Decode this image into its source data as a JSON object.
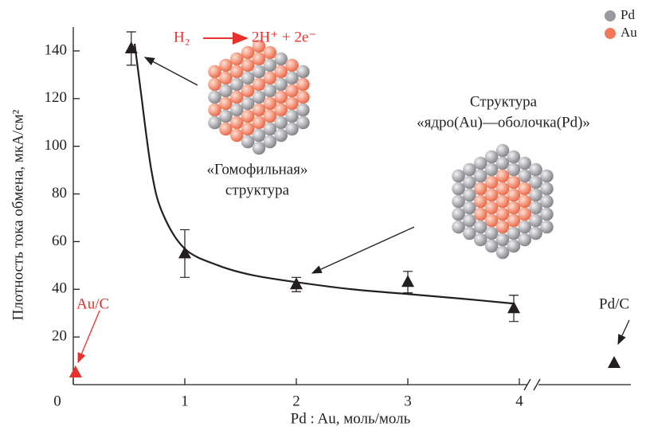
{
  "chart_data": {
    "type": "scatter",
    "x_label": "Pd : Au, моль/моль",
    "y_label": "Плотность тока обмена, мкА/см²",
    "xlim": [
      0,
      5
    ],
    "ylim": [
      0,
      150
    ],
    "xticks": [
      0,
      1,
      2,
      3,
      4
    ],
    "yticks": [
      20,
      40,
      60,
      80,
      100,
      120,
      140
    ],
    "points": {
      "x": [
        0.02,
        0.52,
        1.0,
        2.0,
        3.0,
        3.95,
        4.85
      ],
      "y": [
        5,
        141,
        55,
        42,
        43,
        32,
        9
      ],
      "errors": [
        null,
        7,
        10,
        3,
        4.5,
        5.5,
        null
      ],
      "colors": [
        "#e8312d",
        "#231f20",
        "#231f20",
        "#231f20",
        "#231f20",
        "#231f20",
        "#231f20"
      ]
    },
    "curve": {
      "color": "#231f20",
      "x": [
        0.55,
        0.6,
        0.7,
        0.8,
        1.0,
        1.3,
        1.6,
        2.0,
        2.5,
        3.0,
        3.5,
        3.95
      ],
      "y": [
        143,
        125,
        90,
        72,
        57,
        50,
        46,
        43,
        40,
        38,
        36,
        34
      ]
    },
    "legend": [
      {
        "name": "Pd",
        "color": "#9a9a9e"
      },
      {
        "name": "Au",
        "color": "#f07a5a"
      }
    ],
    "annotations": {
      "reaction_left": "H₂",
      "reaction_right": "2H⁺ + 2e⁻",
      "au_c": "Au/C",
      "pd_c": "Pd/C",
      "homophilic_1": "«Гомофильная»",
      "homophilic_2": "структура",
      "core_shell_1": "Структура",
      "core_shell_2": "«ядро(Au)—оболочка(Pd)»"
    }
  }
}
